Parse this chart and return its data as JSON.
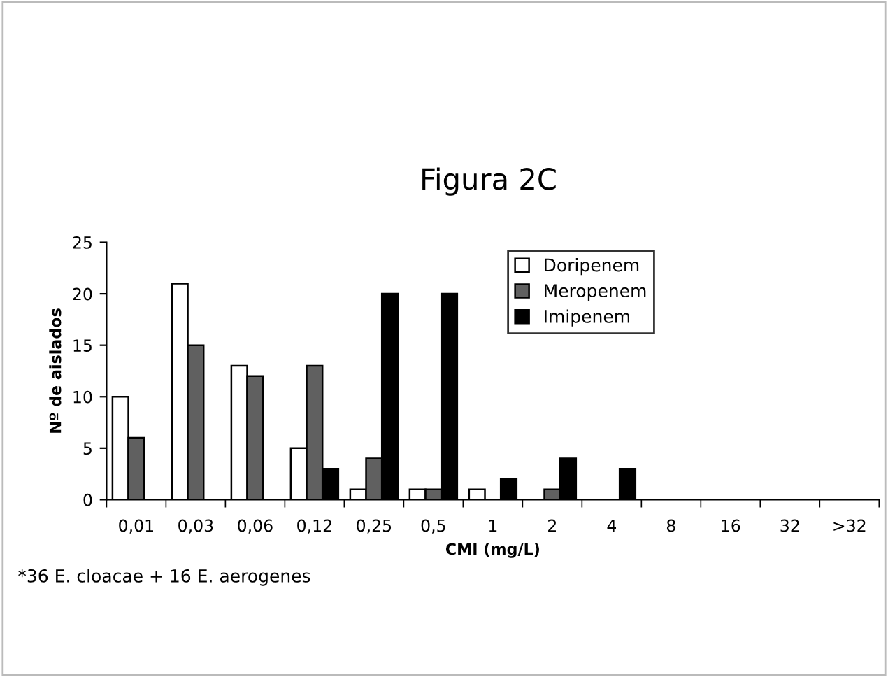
{
  "chart_data": {
    "type": "bar",
    "title": "Figura 2C",
    "xlabel": "CMI (mg/L)",
    "ylabel": "Nº de aislados",
    "categories": [
      "0,01",
      "0,03",
      "0,06",
      "0,12",
      "0,25",
      "0,5",
      "1",
      "2",
      "4",
      "8",
      "16",
      "32",
      ">32"
    ],
    "series": [
      {
        "name": "Doripenem",
        "color": "#ffffff",
        "values": [
          10,
          21,
          13,
          5,
          1,
          1,
          1,
          null,
          null,
          null,
          null,
          null,
          null
        ]
      },
      {
        "name": "Meropenem",
        "color": "#606060",
        "values": [
          6,
          15,
          12,
          13,
          4,
          1,
          null,
          1,
          null,
          null,
          null,
          null,
          null
        ]
      },
      {
        "name": "Imipenem",
        "color": "#000000",
        "values": [
          null,
          null,
          null,
          3,
          20,
          20,
          2,
          4,
          3,
          null,
          null,
          null,
          null
        ]
      }
    ],
    "ylim": [
      0,
      25
    ],
    "yticks": [
      0,
      5,
      10,
      15,
      20,
      25
    ],
    "grid": false,
    "legend": "top right",
    "annotations": [
      "*36 E. cloacae + 16 E. aerogenes"
    ]
  }
}
